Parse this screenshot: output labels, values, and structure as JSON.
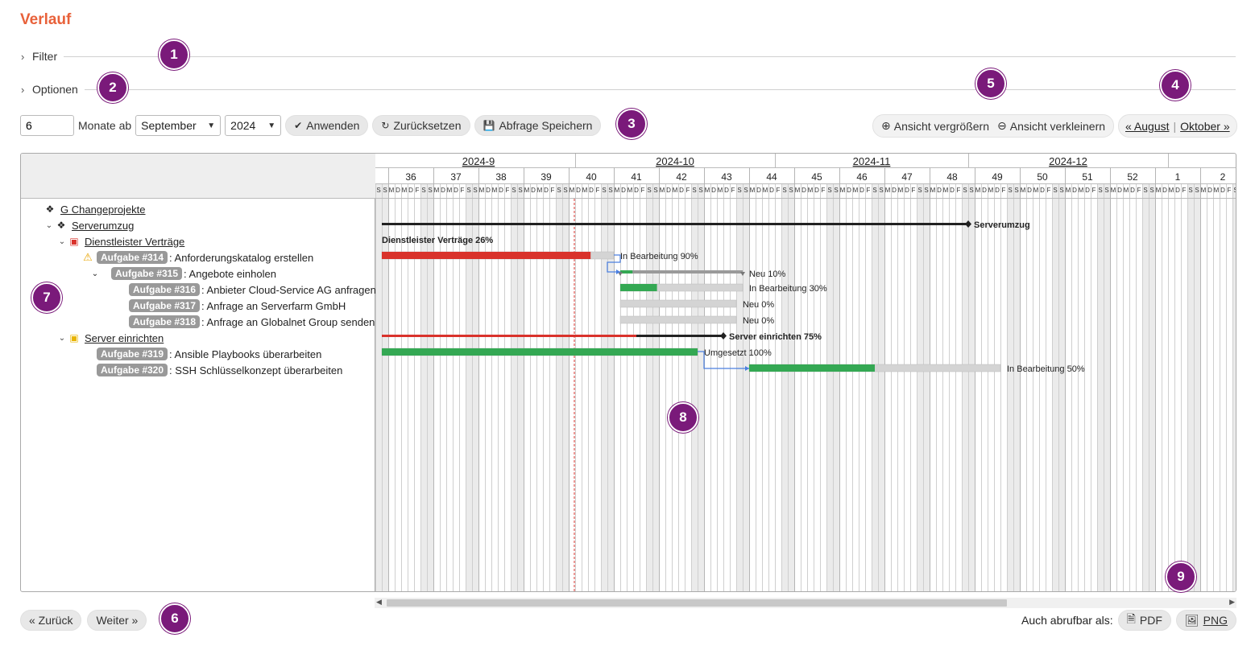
{
  "title": "Verlauf",
  "filter_label": "Filter",
  "options_label": "Optionen",
  "controls": {
    "months_value": "6",
    "months_label": "Monate ab",
    "month_select": "September",
    "year_select": "2024",
    "apply": "Anwenden",
    "reset": "Zurücksetzen",
    "save_query": "Abfrage Speichern"
  },
  "zoom": {
    "zoom_in": "Ansicht vergrößern",
    "zoom_out": "Ansicht verkleinern"
  },
  "nav": {
    "prev_month": "« August",
    "next_month": "Oktober »"
  },
  "markers": [
    "1",
    "2",
    "3",
    "4",
    "5",
    "6",
    "7",
    "8",
    "9"
  ],
  "gantt": {
    "months": [
      "2024-9",
      "2024-10",
      "2024-11",
      "2024-12"
    ],
    "weeks": [
      "36",
      "37",
      "38",
      "39",
      "40",
      "41",
      "42",
      "43",
      "44",
      "45",
      "46",
      "47",
      "48",
      "49",
      "50",
      "51",
      "52",
      "1",
      "2"
    ],
    "day_letters": "SMDMDFS",
    "today": "2024-10-01",
    "subjects": [
      {
        "type": "project",
        "level": 0,
        "name": "G Changeprojekte",
        "toggle": "",
        "icon": "projects-icon"
      },
      {
        "type": "project",
        "level": 1,
        "name": "Serverumzug",
        "toggle": "v",
        "icon": "projects-icon"
      },
      {
        "type": "version",
        "level": 2,
        "name": "Dienstleister Verträge",
        "toggle": "v",
        "icon": "package-red-icon"
      },
      {
        "type": "issue",
        "level": 3,
        "badge": "Aufgabe #314",
        "subject": ": Anforderungskatalog erstellen",
        "warn": true
      },
      {
        "type": "issue",
        "level": 3,
        "badge": "Aufgabe #315",
        "subject": ": Angebote einholen",
        "toggle": "v"
      },
      {
        "type": "issue",
        "level": 4,
        "badge": "Aufgabe #316",
        "subject": ": Anbieter Cloud-Service AG anfragen"
      },
      {
        "type": "issue",
        "level": 4,
        "badge": "Aufgabe #317",
        "subject": ": Anfrage an Serverfarm GmbH"
      },
      {
        "type": "issue",
        "level": 4,
        "badge": "Aufgabe #318",
        "subject": ": Anfrage an Globalnet Group senden"
      },
      {
        "type": "version",
        "level": 2,
        "name": "Server einrichten",
        "toggle": "v",
        "icon": "package-yellow-icon"
      },
      {
        "type": "issue",
        "level": 3,
        "badge": "Aufgabe #319",
        "subject": ": Ansible Playbooks überarbeiten"
      },
      {
        "type": "issue",
        "level": 3,
        "badge": "Aufgabe #320",
        "subject": ": SSH Schlüsselkonzept überarbeiten"
      }
    ],
    "bars": [
      {
        "row": 1,
        "kind": "project",
        "start": "2024-09-01",
        "end": "2024-12-01",
        "label": "Serverumzug"
      },
      {
        "row": 2,
        "kind": "version_label",
        "label": "Dienstleister Verträge 26%"
      },
      {
        "row": 3,
        "kind": "task",
        "start": "2024-09-01",
        "end": "2024-10-07",
        "done": 0.9,
        "color": "#d9322b",
        "label": "In Bearbeitung 90%"
      },
      {
        "row": 4,
        "kind": "parent",
        "start": "2024-10-08",
        "end": "2024-10-27",
        "done": 0.1,
        "label": "Neu 10%"
      },
      {
        "row": 5,
        "kind": "task",
        "start": "2024-10-08",
        "end": "2024-10-27",
        "done": 0.3,
        "color": "#34a853",
        "label": "In Bearbeitung 30%"
      },
      {
        "row": 6,
        "kind": "task",
        "start": "2024-10-08",
        "end": "2024-10-26",
        "done": 0,
        "color": "#34a853",
        "label": "Neu 0%"
      },
      {
        "row": 7,
        "kind": "task",
        "start": "2024-10-08",
        "end": "2024-10-26",
        "done": 0,
        "color": "#34a853",
        "label": "Neu 0%"
      },
      {
        "row": 8,
        "kind": "version",
        "start": "2024-09-01",
        "end": "2024-10-24",
        "done": 0.75,
        "label": "Server einrichten 75%"
      },
      {
        "row": 9,
        "kind": "task",
        "start": "2024-09-01",
        "end": "2024-10-20",
        "done": 1.0,
        "color": "#34a853",
        "label": "Umgesetzt 100%"
      },
      {
        "row": 10,
        "kind": "task",
        "start": "2024-10-28",
        "end": "2024-12-06",
        "done": 0.5,
        "color": "#34a853",
        "label": "In Bearbeitung 50%"
      }
    ]
  },
  "pager": {
    "back": "« Zurück",
    "next": "Weiter »"
  },
  "export": {
    "label": "Auch abrufbar als:",
    "pdf": "PDF",
    "png": "PNG"
  },
  "colors": {
    "title": "#e8613a",
    "marker": "#7a1a7a",
    "late": "#d9322b",
    "ok": "#34a853",
    "today": "#d9322b"
  }
}
